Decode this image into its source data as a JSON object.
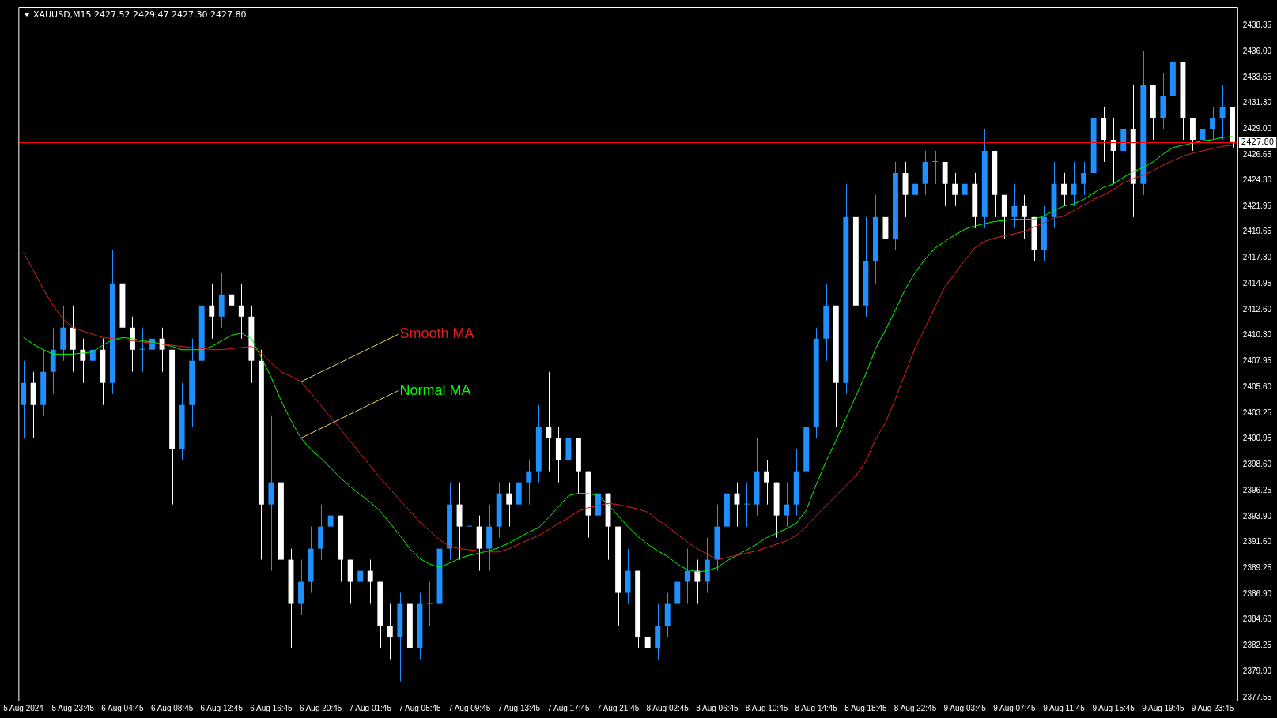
{
  "chart_data": {
    "type": "candlestick",
    "title": "XAUUSD,M15 2427.52 2429.47 2427.30 2427.80",
    "categories": [
      "5 Aug 2024",
      null,
      null,
      null,
      null,
      "5 Aug 23:45",
      null,
      null,
      null,
      null,
      "6 Aug 04:45",
      null,
      null,
      null,
      null,
      "6 Aug 08:45",
      null,
      null,
      null,
      null,
      "6 Aug 12:45",
      null,
      null,
      null,
      null,
      "6 Aug 16:45",
      null,
      null,
      null,
      null,
      "6 Aug 20:45",
      null,
      null,
      null,
      null,
      "7 Aug 01:45",
      null,
      null,
      null,
      null,
      "7 Aug 05:45",
      null,
      null,
      null,
      null,
      "7 Aug 09:45",
      null,
      null,
      null,
      null,
      "7 Aug 13:45",
      null,
      null,
      null,
      null,
      "7 Aug 17:45",
      null,
      null,
      null,
      null,
      "7 Aug 21:45",
      null,
      null,
      null,
      null,
      "8 Aug 02:45",
      null,
      null,
      null,
      null,
      "8 Aug 06:45",
      null,
      null,
      null,
      null,
      "8 Aug 10:45",
      null,
      null,
      null,
      null,
      "8 Aug 14:45",
      null,
      null,
      null,
      null,
      "8 Aug 18:45",
      null,
      null,
      null,
      null,
      "8 Aug 22:45",
      null,
      null,
      null,
      null,
      "9 Aug 03:45",
      null,
      null,
      null,
      null,
      "9 Aug 07:45",
      null,
      null,
      null,
      null,
      "9 Aug 11:45",
      null,
      null,
      null,
      null,
      "9 Aug 15:45",
      null,
      null,
      null,
      null,
      "9 Aug 19:45",
      null,
      null,
      null,
      null,
      "9 Aug 23:45",
      null,
      null
    ],
    "series": [
      {
        "type": "candlestick",
        "ohlc": [
          [
            2404,
            2408,
            2401,
            2406
          ],
          [
            2406,
            2407,
            2401,
            2404
          ],
          [
            2404,
            2409,
            2403,
            2407
          ],
          [
            2407,
            2411,
            2405,
            2409
          ],
          [
            2409,
            2413,
            2408,
            2411
          ],
          [
            2411,
            2413,
            2407,
            2409
          ],
          [
            2409,
            2410,
            2406,
            2408
          ],
          [
            2408,
            2411,
            2407,
            2409
          ],
          [
            2409,
            2410,
            2404,
            2406
          ],
          [
            2406,
            2418,
            2405,
            2415
          ],
          [
            2415,
            2417,
            2409,
            2411
          ],
          [
            2411,
            2412,
            2407,
            2409
          ],
          [
            2409,
            2411,
            2407,
            2409
          ],
          [
            2409,
            2412,
            2408,
            2410
          ],
          [
            2410,
            2411,
            2407,
            2409
          ],
          [
            2409,
            2409,
            2395,
            2400
          ],
          [
            2400,
            2406,
            2399,
            2404
          ],
          [
            2404,
            2410,
            2402,
            2408
          ],
          [
            2408,
            2415,
            2407,
            2413
          ],
          [
            2413,
            2415,
            2410,
            2412
          ],
          [
            2412,
            2416,
            2411,
            2414
          ],
          [
            2414,
            2416,
            2411,
            2413
          ],
          [
            2413,
            2415,
            2410,
            2412
          ],
          [
            2412,
            2413,
            2406,
            2408
          ],
          [
            2408,
            2409,
            2390,
            2395
          ],
          [
            2395,
            2403,
            2389,
            2397
          ],
          [
            2397,
            2398,
            2387,
            2390
          ],
          [
            2390,
            2391,
            2382,
            2386
          ],
          [
            2386,
            2390,
            2385,
            2388
          ],
          [
            2388,
            2393,
            2387,
            2391
          ],
          [
            2391,
            2395,
            2390,
            2393
          ],
          [
            2393,
            2396,
            2391,
            2394
          ],
          [
            2394,
            2394,
            2388,
            2390
          ],
          [
            2390,
            2390,
            2386,
            2388
          ],
          [
            2388,
            2391,
            2387,
            2389
          ],
          [
            2389,
            2390,
            2386,
            2388
          ],
          [
            2388,
            2388,
            2382,
            2384
          ],
          [
            2384,
            2386,
            2381,
            2383
          ],
          [
            2383,
            2387,
            2379,
            2386
          ],
          [
            2386,
            2386,
            2379,
            2382
          ],
          [
            2382,
            2387,
            2381,
            2386
          ],
          [
            2386,
            2388,
            2384,
            2386
          ],
          [
            2386,
            2393,
            2385,
            2391
          ],
          [
            2391,
            2397,
            2390,
            2395
          ],
          [
            2395,
            2397,
            2390,
            2393
          ],
          [
            2393,
            2396,
            2390,
            2393
          ],
          [
            2393,
            2394,
            2389,
            2391
          ],
          [
            2391,
            2395,
            2389,
            2393
          ],
          [
            2393,
            2397,
            2392,
            2396
          ],
          [
            2396,
            2397,
            2393,
            2395
          ],
          [
            2395,
            2398,
            2394,
            2397
          ],
          [
            2397,
            2399,
            2395,
            2398
          ],
          [
            2398,
            2404,
            2397,
            2402
          ],
          [
            2402,
            2407,
            2398,
            2401
          ],
          [
            2401,
            2402,
            2397,
            2399
          ],
          [
            2399,
            2403,
            2398,
            2401
          ],
          [
            2401,
            2401,
            2396,
            2398
          ],
          [
            2398,
            2398,
            2392,
            2394
          ],
          [
            2394,
            2399,
            2391,
            2396
          ],
          [
            2396,
            2396,
            2390,
            2393
          ],
          [
            2393,
            2393,
            2384,
            2387
          ],
          [
            2387,
            2391,
            2386,
            2389
          ],
          [
            2389,
            2389,
            2382,
            2383
          ],
          [
            2383,
            2385,
            2380,
            2382
          ],
          [
            2382,
            2386,
            2381,
            2384
          ],
          [
            2384,
            2387,
            2383,
            2386
          ],
          [
            2386,
            2390,
            2385,
            2388
          ],
          [
            2388,
            2391,
            2386,
            2389
          ],
          [
            2389,
            2390,
            2386,
            2388
          ],
          [
            2388,
            2392,
            2387,
            2390
          ],
          [
            2390,
            2395,
            2389,
            2393
          ],
          [
            2393,
            2397,
            2392,
            2396
          ],
          [
            2396,
            2397,
            2393,
            2395
          ],
          [
            2395,
            2397,
            2393,
            2395
          ],
          [
            2395,
            2401,
            2394,
            2398
          ],
          [
            2398,
            2399,
            2395,
            2397
          ],
          [
            2397,
            2397,
            2392,
            2394
          ],
          [
            2394,
            2397,
            2393,
            2395
          ],
          [
            2395,
            2400,
            2394,
            2398
          ],
          [
            2398,
            2404,
            2397,
            2402
          ],
          [
            2402,
            2411,
            2401,
            2410
          ],
          [
            2410,
            2415,
            2408,
            2413
          ],
          [
            2413,
            2413,
            2402,
            2406
          ],
          [
            2406,
            2424,
            2405,
            2421
          ],
          [
            2421,
            2421,
            2411,
            2413
          ],
          [
            2413,
            2421,
            2412,
            2417
          ],
          [
            2417,
            2423,
            2415,
            2421
          ],
          [
            2421,
            2423,
            2416,
            2419
          ],
          [
            2419,
            2426,
            2418,
            2425
          ],
          [
            2425,
            2426,
            2421,
            2423
          ],
          [
            2423,
            2426,
            2422,
            2424
          ],
          [
            2424,
            2427,
            2423,
            2426
          ],
          [
            2426,
            2427,
            2424,
            2426
          ],
          [
            2426,
            2426,
            2422,
            2424
          ],
          [
            2424,
            2425,
            2422,
            2423
          ],
          [
            2423,
            2426,
            2422,
            2424
          ],
          [
            2424,
            2425,
            2420,
            2421
          ],
          [
            2421,
            2429,
            2420,
            2427
          ],
          [
            2427,
            2427,
            2421,
            2423
          ],
          [
            2423,
            2423,
            2419,
            2421
          ],
          [
            2421,
            2424,
            2420,
            2422
          ],
          [
            2422,
            2423,
            2419,
            2421
          ],
          [
            2421,
            2421,
            2417,
            2418
          ],
          [
            2418,
            2422,
            2417,
            2421
          ],
          [
            2421,
            2426,
            2420,
            2424
          ],
          [
            2424,
            2425,
            2422,
            2423
          ],
          [
            2423,
            2426,
            2422,
            2424
          ],
          [
            2424,
            2426,
            2423,
            2425
          ],
          [
            2425,
            2432,
            2424,
            2430
          ],
          [
            2430,
            2431,
            2426,
            2428
          ],
          [
            2428,
            2430,
            2424,
            2427
          ],
          [
            2427,
            2432,
            2426,
            2429
          ],
          [
            2429,
            2433,
            2421,
            2424
          ],
          [
            2424,
            2436,
            2423,
            2433
          ],
          [
            2433,
            2433,
            2428,
            2430
          ],
          [
            2430,
            2434,
            2429,
            2432
          ],
          [
            2432,
            2437,
            2431,
            2435
          ],
          [
            2435,
            2435,
            2428,
            2430
          ],
          [
            2430,
            2430,
            2427,
            2428
          ],
          [
            2428,
            2431,
            2427,
            2429
          ],
          [
            2429,
            2431,
            2428,
            2430
          ],
          [
            2430,
            2433,
            2428,
            2431
          ],
          [
            2431,
            2431,
            2427.3,
            2427.8
          ]
        ],
        "colors": [
          "#1e90ff",
          "#ffffff",
          "#1e90ff",
          "#1e90ff",
          "#1e90ff",
          "#ffffff",
          "#ffffff",
          "#1e90ff",
          "#ffffff",
          "#1e90ff",
          "#ffffff",
          "#ffffff",
          "#1e90ff",
          "#1e90ff",
          "#ffffff",
          "#ffffff",
          "#1e90ff",
          "#1e90ff",
          "#1e90ff",
          "#ffffff",
          "#1e90ff",
          "#ffffff",
          "#ffffff",
          "#ffffff",
          "#ffffff",
          "#1e90ff",
          "#ffffff",
          "#ffffff",
          "#1e90ff",
          "#1e90ff",
          "#1e90ff",
          "#1e90ff",
          "#ffffff",
          "#ffffff",
          "#1e90ff",
          "#ffffff",
          "#ffffff",
          "#ffffff",
          "#1e90ff",
          "#ffffff",
          "#1e90ff",
          "#1e90ff",
          "#1e90ff",
          "#1e90ff",
          "#ffffff",
          "#1e90ff",
          "#ffffff",
          "#1e90ff",
          "#1e90ff",
          "#ffffff",
          "#1e90ff",
          "#1e90ff",
          "#1e90ff",
          "#ffffff",
          "#ffffff",
          "#1e90ff",
          "#ffffff",
          "#ffffff",
          "#1e90ff",
          "#ffffff",
          "#ffffff",
          "#1e90ff",
          "#ffffff",
          "#ffffff",
          "#1e90ff",
          "#1e90ff",
          "#1e90ff",
          "#1e90ff",
          "#ffffff",
          "#1e90ff",
          "#1e90ff",
          "#1e90ff",
          "#ffffff",
          "#1e90ff",
          "#1e90ff",
          "#ffffff",
          "#ffffff",
          "#1e90ff",
          "#1e90ff",
          "#1e90ff",
          "#1e90ff",
          "#1e90ff",
          "#ffffff",
          "#1e90ff",
          "#ffffff",
          "#1e90ff",
          "#1e90ff",
          "#ffffff",
          "#1e90ff",
          "#ffffff",
          "#1e90ff",
          "#1e90ff",
          "#1e90ff",
          "#ffffff",
          "#ffffff",
          "#1e90ff",
          "#ffffff",
          "#1e90ff",
          "#ffffff",
          "#ffffff",
          "#1e90ff",
          "#ffffff",
          "#ffffff",
          "#1e90ff",
          "#1e90ff",
          "#ffffff",
          "#1e90ff",
          "#1e90ff",
          "#1e90ff",
          "#ffffff",
          "#ffffff",
          "#1e90ff",
          "#ffffff",
          "#1e90ff",
          "#ffffff",
          "#1e90ff",
          "#1e90ff",
          "#ffffff",
          "#ffffff",
          "#1e90ff",
          "#1e90ff",
          "#1e90ff",
          "#ffffff"
        ]
      },
      {
        "type": "line",
        "name": "Smooth MA",
        "color": "#e01e1e",
        "values": [
          2417.8,
          2416.2,
          2414.5,
          2413.0,
          2411.8,
          2411.0,
          2410.7,
          2410.4,
          2410.1,
          2410.0,
          2409.9,
          2409.8,
          2409.7,
          2409.6,
          2409.5,
          2409.4,
          2409.3,
          2409.2,
          2409.1,
          2409.0,
          2409.0,
          2409.1,
          2409.2,
          2409.3,
          2408.7,
          2407.8,
          2407.0,
          2406.6,
          2406.1,
          2405.1,
          2404.0,
          2402.9,
          2401.8,
          2400.7,
          2399.6,
          2398.5,
          2397.4,
          2396.4,
          2395.4,
          2394.4,
          2393.4,
          2392.6,
          2391.8,
          2391.2,
          2391.0,
          2390.9,
          2390.8,
          2390.7,
          2390.7,
          2391.0,
          2391.4,
          2391.8,
          2392.2,
          2392.7,
          2393.3,
          2393.8,
          2394.4,
          2394.7,
          2394.9,
          2395.1,
          2395.0,
          2394.8,
          2394.6,
          2394.3,
          2393.6,
          2393.0,
          2392.3,
          2391.6,
          2391.0,
          2390.5,
          2390.0,
          2390.2,
          2390.4,
          2390.6,
          2390.8,
          2391.1,
          2391.4,
          2391.7,
          2392.2,
          2393.0,
          2394.0,
          2394.9,
          2395.8,
          2396.7,
          2397.6,
          2398.9,
          2400.9,
          2402.4,
          2404.6,
          2406.9,
          2409.2,
          2411.0,
          2412.9,
          2414.7,
          2415.9,
          2417.1,
          2418.2,
          2418.8,
          2419.1,
          2419.3,
          2419.5,
          2419.7,
          2420.1,
          2420.5,
          2420.9,
          2421.1,
          2421.6,
          2422.1,
          2422.6,
          2423.0,
          2423.5,
          2424.1,
          2424.5,
          2424.8,
          2425.2,
          2425.7,
          2426.1,
          2426.5,
          2426.8,
          2427.0,
          2427.2,
          2427.4,
          2427.5
        ]
      },
      {
        "type": "line",
        "name": "Normal MA",
        "color": "#00ff00",
        "values": [
          2410.1,
          2409.5,
          2409.0,
          2408.6,
          2408.6,
          2408.6,
          2408.7,
          2408.8,
          2409.4,
          2409.9,
          2410.1,
          2410.0,
          2409.8,
          2409.7,
          2409.5,
          2409.3,
          2409.0,
          2409.0,
          2409.0,
          2409.3,
          2409.8,
          2410.3,
          2410.5,
          2410.0,
          2408.3,
          2406.5,
          2404.4,
          2402.6,
          2401.0,
          2400.0,
          2399.2,
          2398.3,
          2397.4,
          2396.6,
          2395.9,
          2395.2,
          2394.4,
          2393.3,
          2392.2,
          2391.0,
          2390.1,
          2389.6,
          2389.3,
          2389.7,
          2390.1,
          2390.4,
          2390.6,
          2390.8,
          2391.1,
          2391.5,
          2392.0,
          2392.5,
          2392.9,
          2393.8,
          2394.8,
          2395.8,
          2396.0,
          2396.0,
          2395.8,
          2395.0,
          2394.0,
          2393.0,
          2392.1,
          2391.4,
          2390.8,
          2390.3,
          2389.6,
          2389.1,
          2388.9,
          2389.0,
          2389.3,
          2389.9,
          2390.4,
          2390.9,
          2391.4,
          2392.0,
          2392.4,
          2392.8,
          2393.3,
          2394.5,
          2396.8,
          2398.9,
          2400.8,
          2402.8,
          2404.8,
          2406.8,
          2409.1,
          2410.8,
          2412.6,
          2414.5,
          2416.0,
          2417.2,
          2418.2,
          2418.8,
          2419.4,
          2419.9,
          2420.2,
          2420.4,
          2420.6,
          2420.7,
          2420.8,
          2420.8,
          2420.8,
          2421.1,
          2421.6,
          2422.0,
          2422.2,
          2422.6,
          2423.2,
          2423.7,
          2424.0,
          2424.6,
          2425.1,
          2425.5,
          2426.0,
          2426.7,
          2427.3,
          2427.5,
          2427.7,
          2427.9,
          2428.0,
          2428.2,
          2428.3
        ]
      }
    ],
    "ylim": [
      2377.25,
      2440.0
    ],
    "yticks": [
      2377.55,
      {
        "value": 2379.9,
        "label": "2379.90"
      },
      2382.25,
      {
        "value": 2384.6,
        "label": "2384.60"
      },
      {
        "value": 2386.9,
        "label": "2386.90"
      },
      2389.25,
      {
        "value": 2391.6,
        "label": "2391.60"
      },
      {
        "value": 2393.9,
        "label": "2393.90"
      },
      2396.25,
      {
        "value": 2398.6,
        "label": "2398.60"
      },
      2400.95,
      2403.25,
      {
        "value": 2405.6,
        "label": "2405.60"
      },
      2407.95,
      {
        "value": 2410.3,
        "label": "2410.30"
      },
      {
        "value": 2412.6,
        "label": "2412.60"
      },
      2414.95,
      {
        "value": 2417.3,
        "label": "2417.30"
      },
      2419.65,
      2421.95,
      {
        "value": 2424.3,
        "label": "2424.30"
      },
      2426.65,
      {
        "value": 2429.0,
        "label": "2429.00"
      },
      {
        "value": 2431.3,
        "label": "2431.30"
      },
      2433.65,
      {
        "value": 2436.0,
        "label": "2436.00"
      },
      2438.35
    ],
    "ref_lines": [
      {
        "axis": "y",
        "value": 2427.8,
        "label": "2427.80",
        "color": "#ff0000"
      }
    ]
  }
}
